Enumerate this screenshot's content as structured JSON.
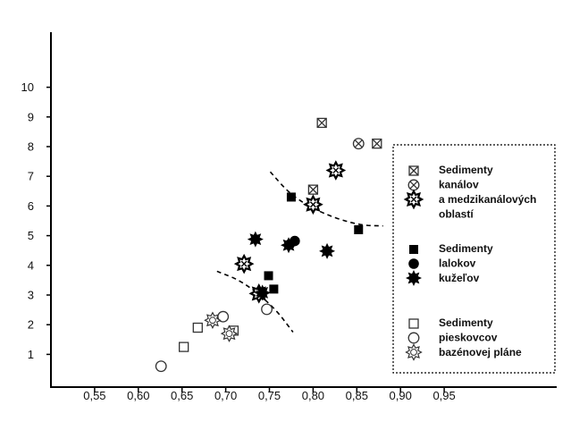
{
  "chart_data": {
    "type": "scatter",
    "title": "",
    "xlabel": "",
    "ylabel": "",
    "xlim": [
      0.5,
      1.0
    ],
    "ylim": [
      0,
      11.5
    ],
    "x_ticks": [
      "0,55",
      "0,60",
      "0,65",
      "0,70",
      "0,75",
      "0,80",
      "0,85",
      "0,90",
      "0,95"
    ],
    "x_tick_values": [
      0.55,
      0.6,
      0.65,
      0.7,
      0.75,
      0.8,
      0.85,
      0.9,
      0.95
    ],
    "y_ticks": [
      "1",
      "2",
      "3",
      "4",
      "5",
      "6",
      "7",
      "8",
      "9",
      "10"
    ],
    "y_tick_values": [
      1,
      2,
      3,
      4,
      5,
      6,
      7,
      8,
      9,
      10
    ],
    "grid": false,
    "legend_position": "right",
    "legend_groups": [
      {
        "text": [
          "Sedimenty",
          "kanálov",
          "a medzikanálových",
          "oblastí"
        ],
        "symbols": [
          "square-x",
          "circle-x",
          "star-x"
        ]
      },
      {
        "text": [
          "Sedimenty",
          "lalokov",
          "kužeľov"
        ],
        "symbols": [
          "square-filled",
          "circle-filled",
          "star-filled"
        ]
      },
      {
        "text": [
          "Sedimenty",
          "pieskovcov",
          "bazénovej pláne"
        ],
        "symbols": [
          "square-open",
          "circle-open",
          "star-open"
        ]
      }
    ],
    "series": [
      {
        "group": "Sedimenty kanálov a medzikanálových oblastí",
        "marker": "square-x",
        "points": [
          [
            0.81,
            8.8
          ],
          [
            0.873,
            8.1
          ],
          [
            0.8,
            6.55
          ]
        ]
      },
      {
        "group": "Sedimenty kanálov a medzikanálových oblastí",
        "marker": "circle-x",
        "points": [
          [
            0.852,
            8.1
          ]
        ]
      },
      {
        "group": "Sedimenty kanálov a medzikanálových oblastí",
        "marker": "star-x",
        "points": [
          [
            0.826,
            7.2
          ],
          [
            0.8,
            6.05
          ],
          [
            0.721,
            4.05
          ],
          [
            0.738,
            3.05
          ]
        ]
      },
      {
        "group": "Sedimenty lalokov a kužeľov",
        "marker": "square-filled",
        "points": [
          [
            0.775,
            6.3
          ],
          [
            0.852,
            5.2
          ],
          [
            0.749,
            3.65
          ],
          [
            0.755,
            3.2
          ]
        ]
      },
      {
        "group": "Sedimenty lalokov a kužeľov",
        "marker": "circle-filled",
        "points": [
          [
            0.779,
            4.82
          ],
          [
            0.773,
            4.7
          ]
        ]
      },
      {
        "group": "Sedimenty lalokov a kužeľov",
        "marker": "star-filled",
        "points": [
          [
            0.734,
            4.88
          ],
          [
            0.772,
            4.68
          ],
          [
            0.816,
            4.48
          ],
          [
            0.742,
            3.08
          ]
        ]
      },
      {
        "group": "Sedimenty pieskovcov bazénovej pláne",
        "marker": "square-open",
        "points": [
          [
            0.668,
            1.9
          ],
          [
            0.652,
            1.25
          ],
          [
            0.709,
            1.8
          ]
        ]
      },
      {
        "group": "Sedimenty pieskovcov bazénovej pláne",
        "marker": "circle-open",
        "points": [
          [
            0.626,
            0.6
          ],
          [
            0.697,
            2.27
          ],
          [
            0.747,
            2.52
          ]
        ]
      },
      {
        "group": "Sedimenty pieskovcov bazénovej pláne",
        "marker": "star-open",
        "points": [
          [
            0.685,
            2.15
          ],
          [
            0.704,
            1.7
          ]
        ]
      }
    ],
    "boundary_lines": [
      {
        "style": "dashed",
        "points": [
          [
            0.751,
            7.15
          ],
          [
            0.775,
            6.35
          ],
          [
            0.81,
            5.75
          ],
          [
            0.852,
            5.35
          ],
          [
            0.88,
            5.33
          ]
        ]
      },
      {
        "style": "dashed",
        "points": [
          [
            0.69,
            3.8
          ],
          [
            0.72,
            3.45
          ],
          [
            0.755,
            2.6
          ],
          [
            0.777,
            1.75
          ]
        ]
      }
    ]
  }
}
